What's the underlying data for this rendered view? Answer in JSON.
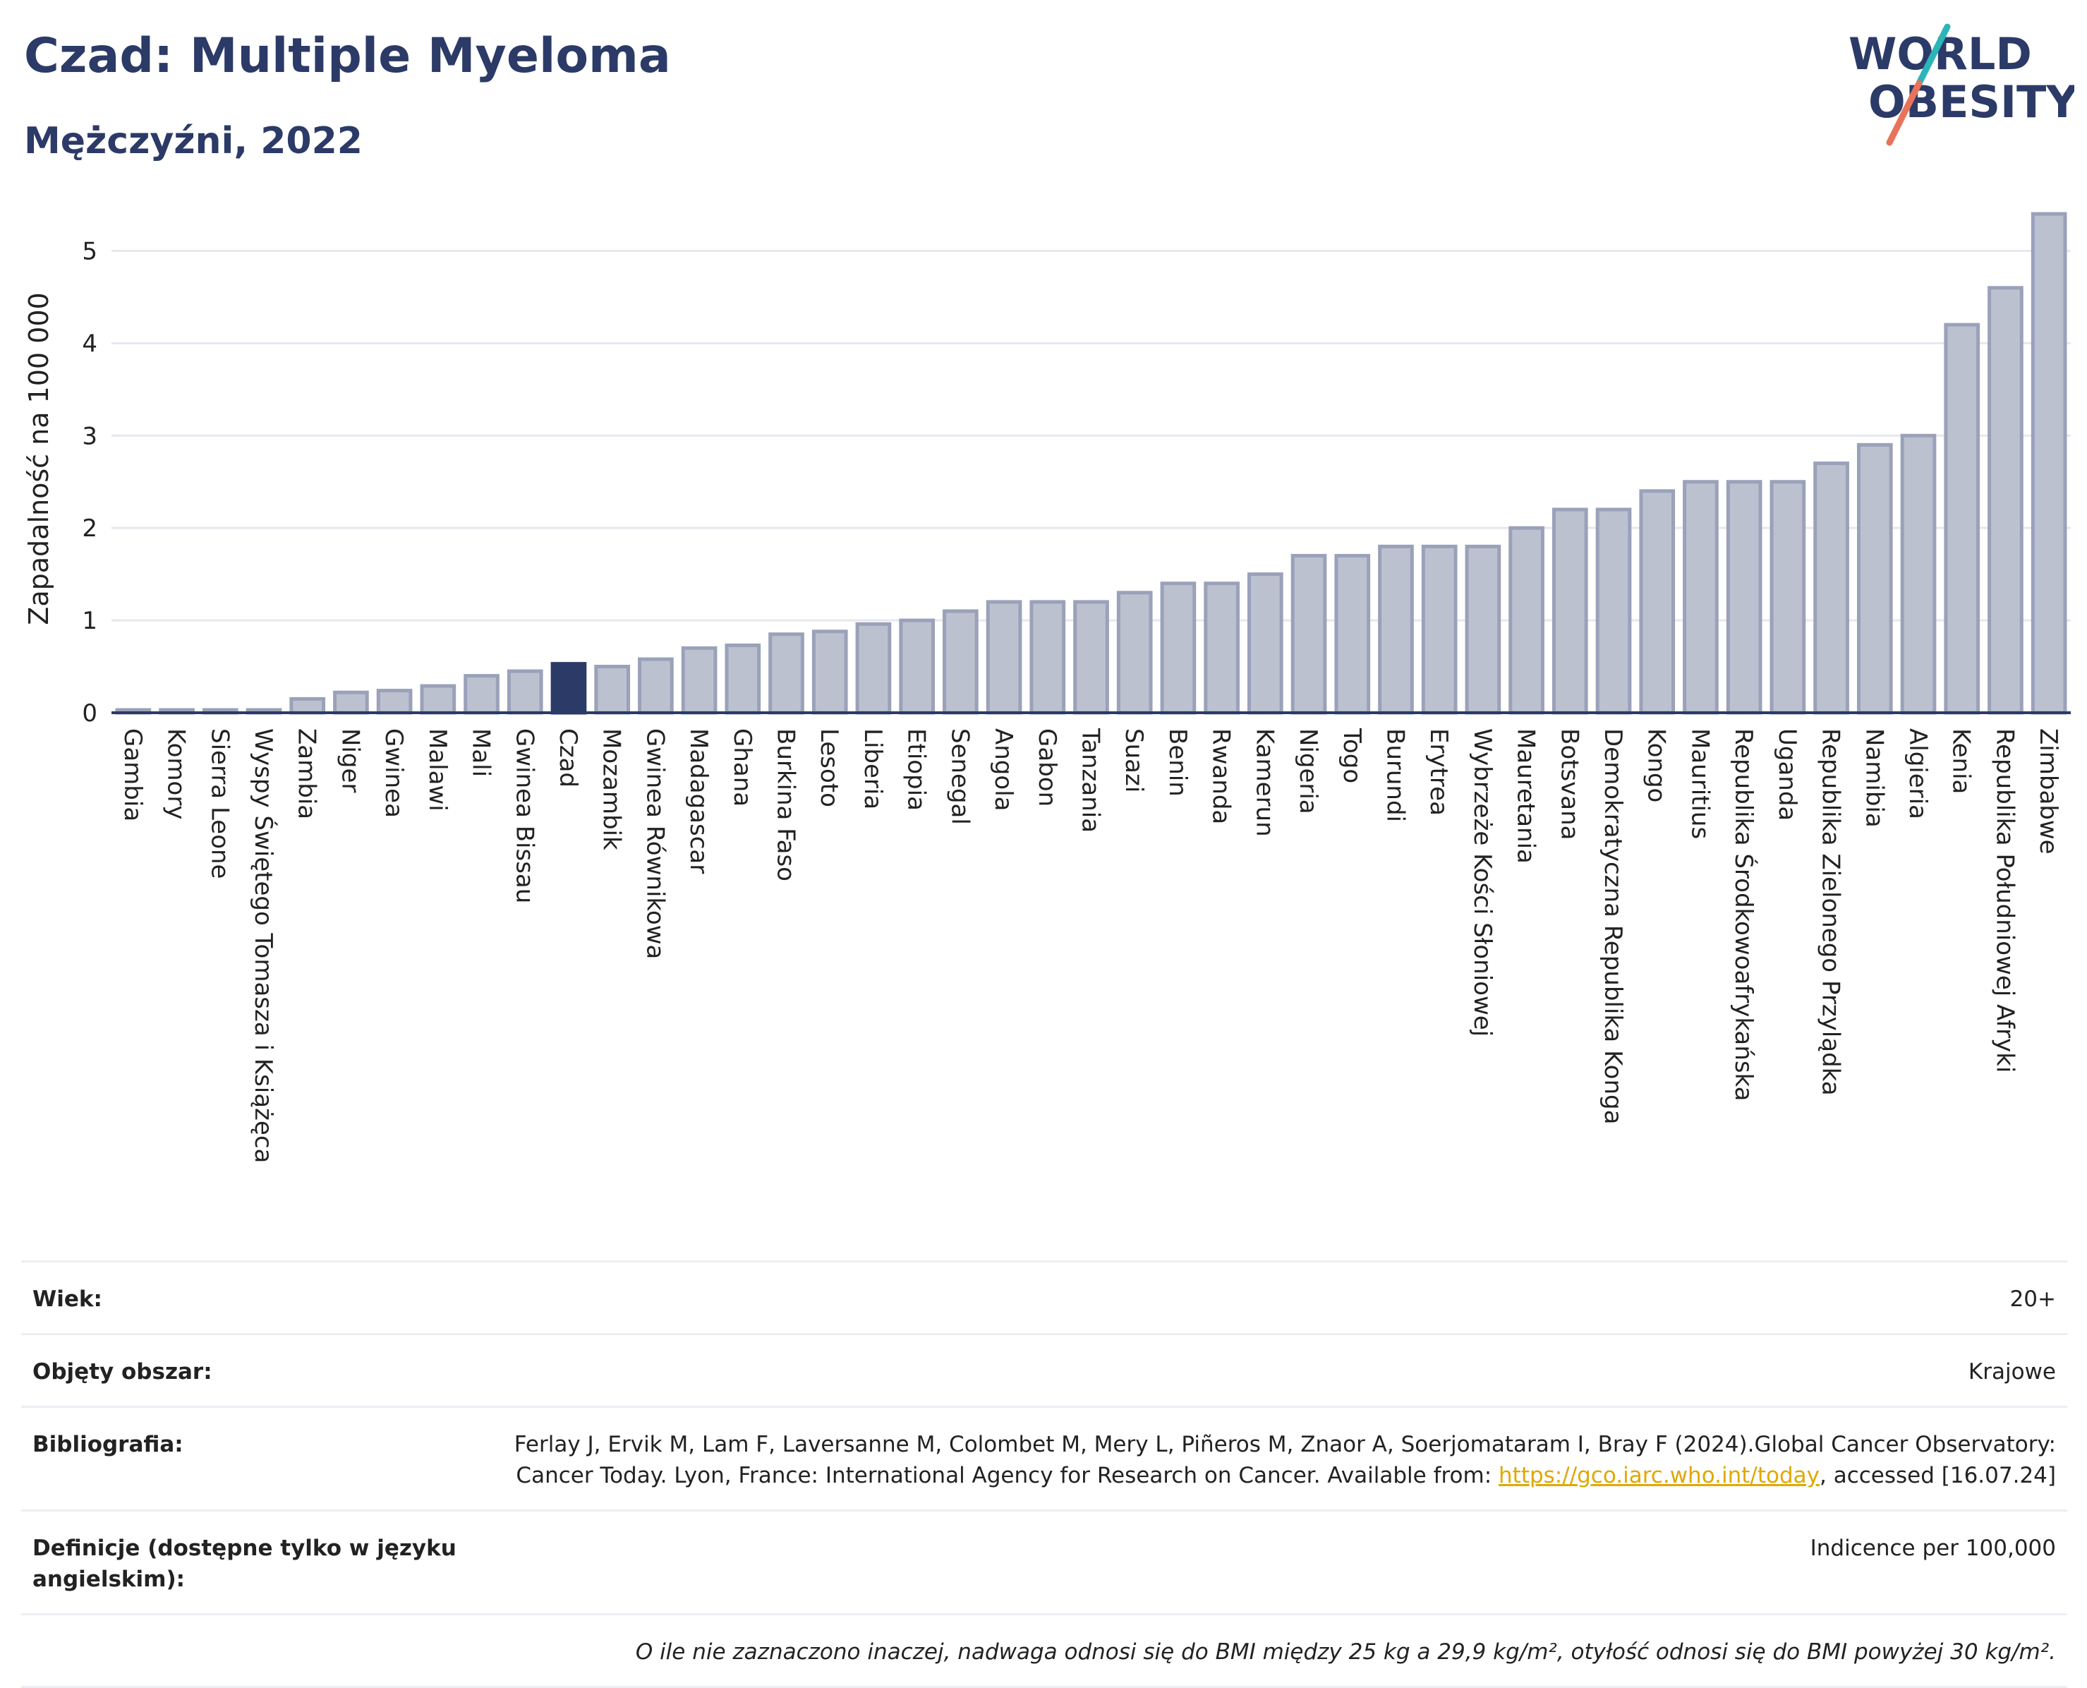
{
  "header": {
    "title": "Czad: Multiple Myeloma",
    "subtitle": "Mężczyźni, 2022"
  },
  "logo": {
    "line1": "WORLD",
    "line2": "OBESITY"
  },
  "colors": {
    "bar": "#bcc1d0",
    "bar_stroke": "#9aa1b9",
    "highlight": "#2b3a67",
    "title": "#2b3a67"
  },
  "chart_data": {
    "type": "bar",
    "ylabel": "Zapadalność na 100 000",
    "ylim": [
      0,
      5.5
    ],
    "yticks": [
      0,
      1,
      2,
      3,
      4,
      5
    ],
    "grid": true,
    "highlight": "Czad",
    "categories": [
      "Gambia",
      "Komory",
      "Sierra Leone",
      "Wyspy Świętego Tomasza i Książęca",
      "Zambia",
      "Niger",
      "Gwinea",
      "Malawi",
      "Mali",
      "Gwinea Bissau",
      "Czad",
      "Mozambik",
      "Gwinea Równikowa",
      "Madagascar",
      "Ghana",
      "Burkina Faso",
      "Lesoto",
      "Liberia",
      "Etiopia",
      "Senegal",
      "Angola",
      "Gabon",
      "Tanzania",
      "Suazi",
      "Benin",
      "Rwanda",
      "Kamerun",
      "Nigeria",
      "Togo",
      "Burundi",
      "Erytrea",
      "Wybrzeże Kości Słoniowej",
      "Mauretania",
      "Botsvana",
      "Demokratyczna Republika Konga",
      "Kongo",
      "Mauritius",
      "Republika Środkowoafrykańska",
      "Uganda",
      "Republika Zielonego Przylądka",
      "Namibia",
      "Algieria",
      "Kenia",
      "Republika Południowej Afryki",
      "Zimbabwe"
    ],
    "values": [
      0.02,
      0.02,
      0.02,
      0.02,
      0.15,
      0.22,
      0.24,
      0.29,
      0.4,
      0.45,
      0.53,
      0.5,
      0.58,
      0.7,
      0.73,
      0.85,
      0.88,
      0.96,
      1.0,
      1.1,
      1.2,
      1.2,
      1.2,
      1.3,
      1.4,
      1.4,
      1.5,
      1.7,
      1.7,
      1.8,
      1.8,
      1.8,
      2.0,
      2.2,
      2.2,
      2.4,
      2.5,
      2.5,
      2.5,
      2.7,
      2.9,
      3.0,
      4.2,
      4.6,
      5.4
    ]
  },
  "info": {
    "age_label": "Wiek:",
    "age_value": "20+",
    "area_label": "Objęty obszar:",
    "area_value": "Krajowe",
    "bib_label": "Bibliografia:",
    "bib_text1": "Ferlay J, Ervik M, Lam F, Laversanne M, Colombet M, Mery L, Piñeros M, Znaor A, Soerjomataram I, Bray F (2024).Global Cancer Observatory: Cancer Today. Lyon, France: International Agency for Research on Cancer. Available from: ",
    "bib_link": "https://gco.iarc.who.int/today",
    "bib_text2": ", accessed [16.07.24]",
    "def_label": "Definicje (dostępne tylko w języku angielskim):",
    "def_value": "Indicence per 100,000",
    "note": "O ile nie zaznaczono inaczej, nadwaga odnosi się do BMI między 25 kg a 29,9 kg/m², otyłość odnosi się do BMI powyżej 30 kg/m²."
  }
}
